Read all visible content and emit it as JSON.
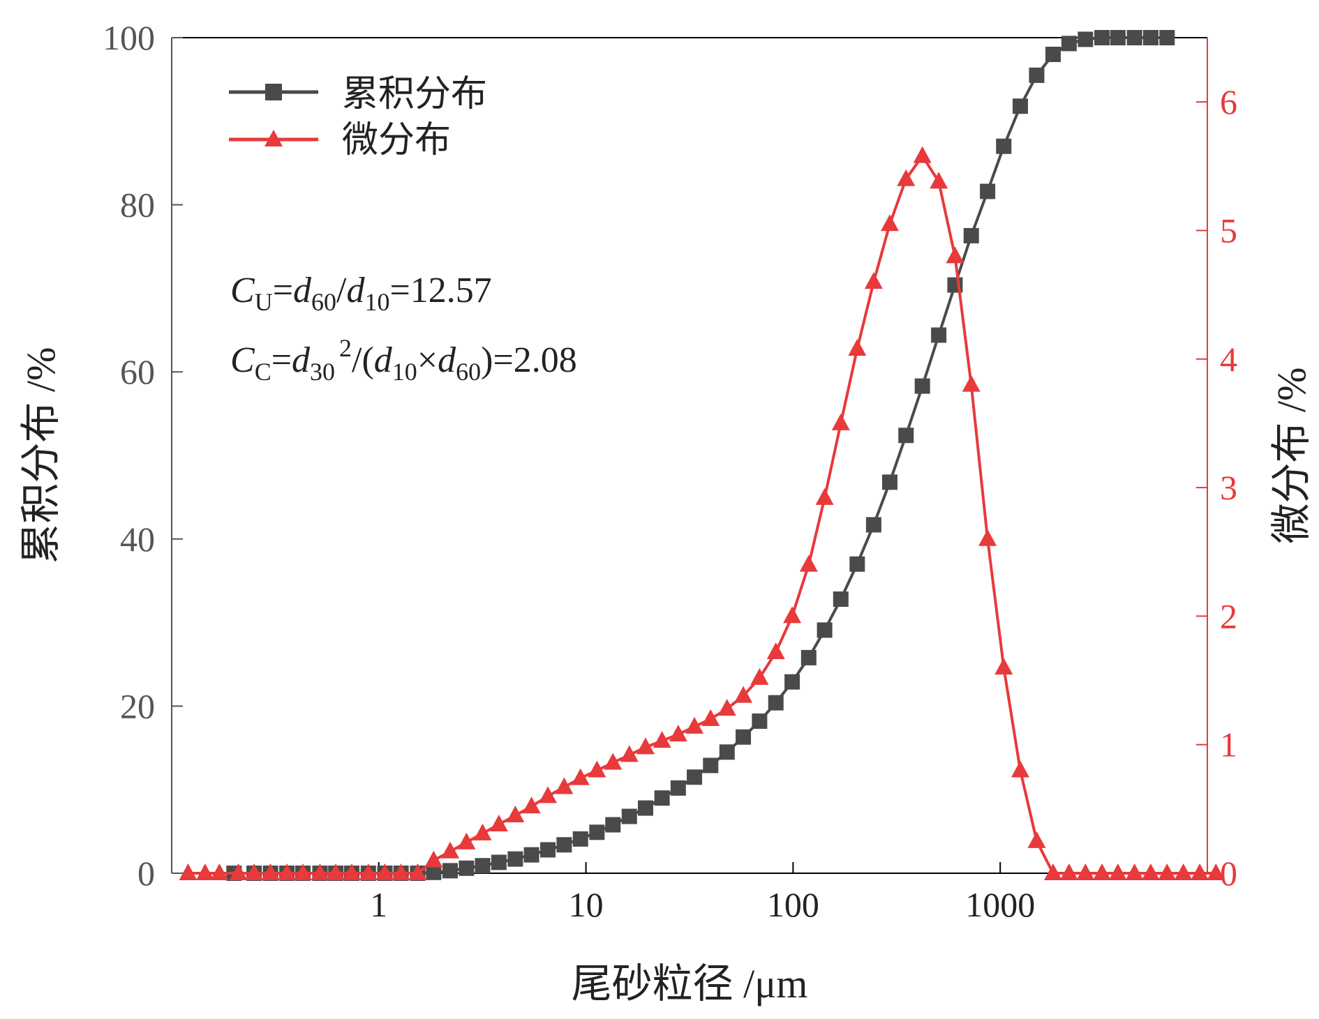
{
  "chart_data": {
    "type": "line",
    "xlabel": "尾砂粒径  /μm",
    "ylabel_left": "累积分布 /%",
    "ylabel_right": "微分布  /%",
    "x_scale": "log",
    "x_ticks": [
      1,
      10,
      100,
      1000
    ],
    "x_tick_labels": [
      "1",
      "10",
      "100",
      "1000"
    ],
    "xlim": [
      0.1,
      10000
    ],
    "ylim_left": [
      0,
      100
    ],
    "y_ticks_left": [
      "0",
      "20",
      "40",
      "60",
      "80",
      "100"
    ],
    "ylim_right": [
      0,
      6.5
    ],
    "y_ticks_right": [
      "0",
      "1",
      "2",
      "3",
      "4",
      "5",
      "6"
    ],
    "legend_position": "top-left",
    "colors": {
      "cumulative": "#4a4a4a",
      "differential": "#e8393b",
      "axis": "#000000",
      "tick_text": "#555555"
    },
    "annotations": {
      "cu": {
        "C": "C",
        "sub_U": "U",
        "eq": "=",
        "d1": "d",
        "sub_60": "60",
        "slash": "/",
        "d2": "d",
        "sub_10": "10",
        "value": "=12.57"
      },
      "cc": {
        "C": "C",
        "sub_C": "C",
        "eq": "=",
        "d1": "d",
        "sub_30": "30",
        "sup_2": "2",
        "mid": "/(",
        "d2": "d",
        "sub_10": "10",
        "times": "×",
        "d3": "d",
        "sub_60": "60",
        "value": ")=2.08"
      }
    },
    "series": [
      {
        "name": "累积分布",
        "axis": "left",
        "marker": "square",
        "points": [
          [
            0.2,
            0
          ],
          [
            0.25,
            0
          ],
          [
            0.3,
            0
          ],
          [
            0.36,
            0
          ],
          [
            0.43,
            0
          ],
          [
            0.52,
            0
          ],
          [
            0.62,
            0
          ],
          [
            0.74,
            0
          ],
          [
            0.89,
            0
          ],
          [
            1.07,
            0
          ],
          [
            1.28,
            0
          ],
          [
            1.54,
            0
          ],
          [
            1.84,
            0.1
          ],
          [
            2.21,
            0.3
          ],
          [
            2.65,
            0.6
          ],
          [
            3.17,
            0.9
          ],
          [
            3.8,
            1.3
          ],
          [
            4.56,
            1.7
          ],
          [
            5.46,
            2.2
          ],
          [
            6.55,
            2.8
          ],
          [
            7.85,
            3.4
          ],
          [
            9.41,
            4.1
          ],
          [
            11.3,
            4.9
          ],
          [
            13.5,
            5.8
          ],
          [
            16.2,
            6.8
          ],
          [
            19.4,
            7.8
          ],
          [
            23.3,
            9
          ],
          [
            27.9,
            10.2
          ],
          [
            33.4,
            11.5
          ],
          [
            40,
            12.9
          ],
          [
            48,
            14.5
          ],
          [
            57.5,
            16.3
          ],
          [
            68.9,
            18.2
          ],
          [
            82.6,
            20.4
          ],
          [
            99,
            22.9
          ],
          [
            119,
            25.8
          ],
          [
            142,
            29.1
          ],
          [
            170,
            32.8
          ],
          [
            204,
            37
          ],
          [
            245,
            41.7
          ],
          [
            293,
            46.8
          ],
          [
            351,
            52.4
          ],
          [
            421,
            58.3
          ],
          [
            505,
            64.4
          ],
          [
            605,
            70.4
          ],
          [
            725,
            76.3
          ],
          [
            869,
            81.6
          ],
          [
            1040,
            87
          ],
          [
            1250,
            91.8
          ],
          [
            1500,
            95.5
          ],
          [
            1800,
            98
          ],
          [
            2150,
            99.3
          ],
          [
            2580,
            99.8
          ],
          [
            3100,
            100
          ],
          [
            3700,
            100
          ],
          [
            4450,
            100
          ],
          [
            5330,
            100
          ],
          [
            6390,
            100
          ]
        ]
      },
      {
        "name": "微分布",
        "axis": "right",
        "marker": "triangle",
        "points": [
          [
            0.12,
            0
          ],
          [
            0.145,
            0
          ],
          [
            0.17,
            0
          ],
          [
            0.21,
            0
          ],
          [
            0.25,
            0
          ],
          [
            0.3,
            0
          ],
          [
            0.36,
            0
          ],
          [
            0.43,
            0
          ],
          [
            0.52,
            0
          ],
          [
            0.62,
            0
          ],
          [
            0.74,
            0
          ],
          [
            0.89,
            0
          ],
          [
            1.07,
            0
          ],
          [
            1.28,
            0
          ],
          [
            1.54,
            0
          ],
          [
            1.84,
            0.1
          ],
          [
            2.21,
            0.17
          ],
          [
            2.65,
            0.24
          ],
          [
            3.17,
            0.31
          ],
          [
            3.8,
            0.38
          ],
          [
            4.56,
            0.45
          ],
          [
            5.46,
            0.52
          ],
          [
            6.55,
            0.6
          ],
          [
            7.85,
            0.67
          ],
          [
            9.41,
            0.74
          ],
          [
            11.3,
            0.8
          ],
          [
            13.5,
            0.86
          ],
          [
            16.2,
            0.92
          ],
          [
            19.4,
            0.98
          ],
          [
            23.3,
            1.03
          ],
          [
            27.9,
            1.08
          ],
          [
            33.4,
            1.14
          ],
          [
            40,
            1.2
          ],
          [
            48,
            1.28
          ],
          [
            57.5,
            1.38
          ],
          [
            68.9,
            1.52
          ],
          [
            82.6,
            1.72
          ],
          [
            99,
            2
          ],
          [
            119,
            2.4
          ],
          [
            142,
            2.92
          ],
          [
            170,
            3.5
          ],
          [
            204,
            4.08
          ],
          [
            245,
            4.6
          ],
          [
            293,
            5.05
          ],
          [
            351,
            5.4
          ],
          [
            421,
            5.58
          ],
          [
            505,
            5.38
          ],
          [
            605,
            4.8
          ],
          [
            725,
            3.8
          ],
          [
            869,
            2.6
          ],
          [
            1040,
            1.6
          ],
          [
            1250,
            0.8
          ],
          [
            1500,
            0.25
          ],
          [
            1800,
            0
          ],
          [
            2150,
            0
          ],
          [
            2580,
            0
          ],
          [
            3100,
            0
          ],
          [
            3700,
            0
          ],
          [
            4450,
            0
          ],
          [
            5330,
            0
          ],
          [
            6390,
            0
          ],
          [
            7660,
            0
          ],
          [
            9190,
            0
          ],
          [
            11000,
            0
          ]
        ]
      }
    ]
  }
}
